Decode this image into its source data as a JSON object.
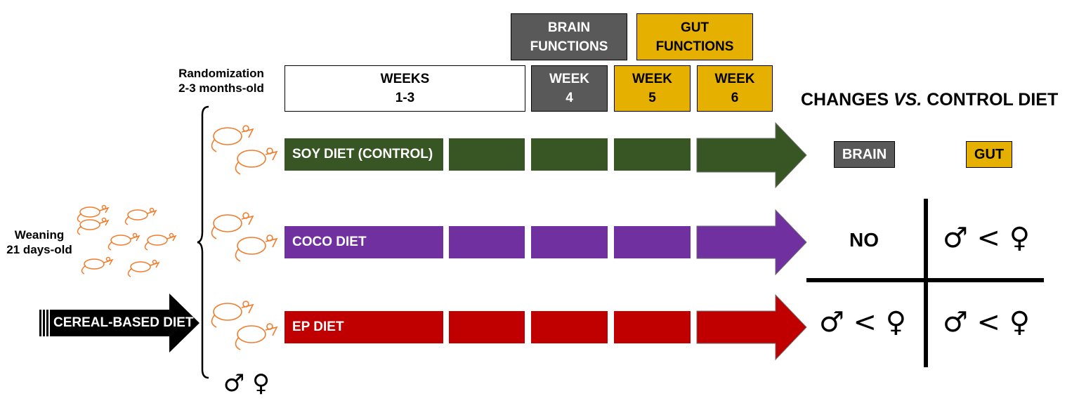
{
  "header": {
    "randomization": [
      "Randomization",
      "2-3 months-old"
    ],
    "weeks_1_3": [
      "WEEKS",
      "1-3"
    ],
    "week4": [
      "WEEK",
      "4"
    ],
    "week5": [
      "WEEK",
      "5"
    ],
    "week6": [
      "WEEK",
      "6"
    ],
    "brain_functions": [
      "BRAIN",
      "FUNCTIONS"
    ],
    "gut_functions": [
      "GUT",
      "FUNCTIONS"
    ]
  },
  "weaning": [
    "Weaning",
    "21 days-old"
  ],
  "cereal_label": "CEREAL-BASED DIET",
  "sex_symbols": "♂ ♀",
  "diets": [
    {
      "label": "SOY DIET (CONTROL)",
      "color": "#375623"
    },
    {
      "label": "COCO DIET",
      "color": "#7030a0"
    },
    {
      "label": "EP DIET",
      "color": "#c00000"
    }
  ],
  "results": {
    "title_part1": "CHANGES ",
    "title_italic": "VS.",
    "title_part2": " CONTROL DIET",
    "brain_label": "BRAIN",
    "gut_label": "GUT",
    "coco_brain": "NO",
    "coco_gut": "♂ < ♀",
    "ep_brain": "♂ < ♀",
    "ep_gut": "♂ < ♀"
  },
  "colors": {
    "mouse": "#f07d2e",
    "brain": "#595959",
    "gut": "#e6b000"
  }
}
